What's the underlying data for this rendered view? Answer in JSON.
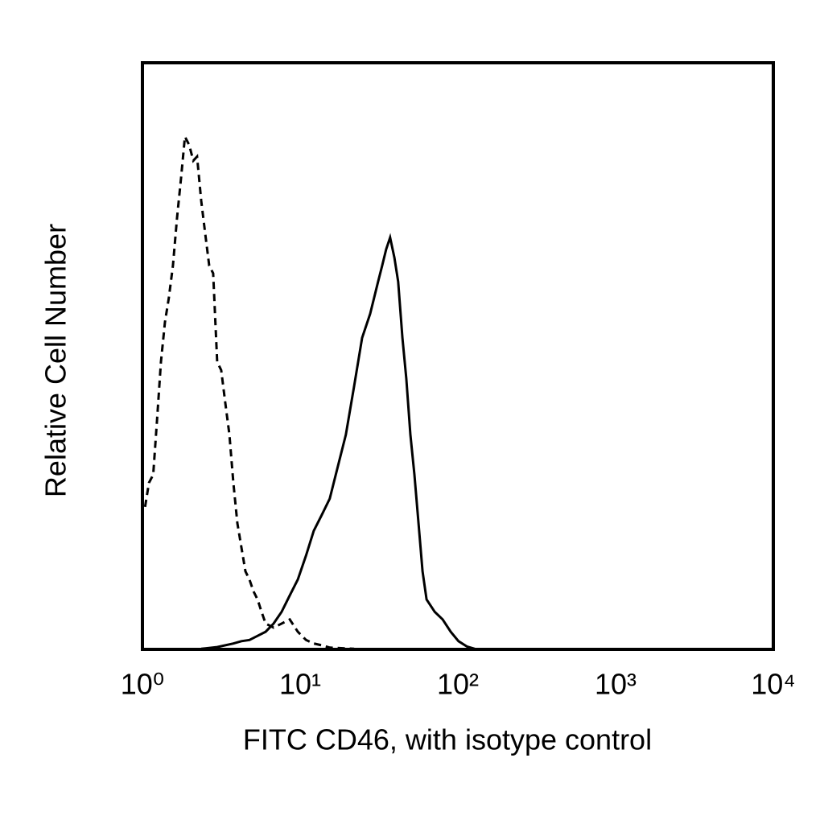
{
  "chart_data": {
    "type": "line",
    "xlabel": "FITC CD46, with isotype control",
    "ylabel": "Relative Cell Number",
    "xscale": "log",
    "xlim": [
      1,
      10000
    ],
    "xticks": [
      {
        "value": 1,
        "label": "10⁰"
      },
      {
        "value": 10,
        "label": "10¹"
      },
      {
        "value": 100,
        "label": "10²"
      },
      {
        "value": 1000,
        "label": "10³"
      },
      {
        "value": 10000,
        "label": "10⁴"
      }
    ],
    "ylim": [
      0,
      100
    ],
    "series": [
      {
        "color": "#000000",
        "dashed": true,
        "x": [
          1.04,
          1.1,
          1.17,
          1.24,
          1.31,
          1.39,
          1.47,
          1.56,
          1.66,
          1.76,
          1.86,
          1.98,
          2.1,
          2.22,
          2.36,
          2.5,
          2.65,
          2.81,
          2.98,
          3.16,
          3.35,
          3.56,
          3.77,
          4.0,
          4.24,
          4.5,
          4.77,
          5.06,
          5.37,
          5.69,
          6.04,
          6.79,
          7.63,
          8.59,
          9.66,
          10.9,
          12.2,
          13.7,
          15.4,
          22.0
        ],
        "values": [
          24.3,
          28.4,
          29.8,
          39.4,
          49.0,
          55.8,
          59.9,
          65.4,
          73.7,
          80.5,
          87.4,
          86.0,
          83.3,
          84.0,
          76.4,
          70.9,
          65.4,
          64.1,
          49.0,
          47.6,
          42.1,
          36.6,
          28.4,
          21.5,
          17.4,
          13.3,
          11.9,
          9.9,
          8.5,
          6.4,
          4.4,
          3.7,
          4.4,
          5.1,
          3.0,
          1.6,
          1.0,
          0.7,
          0.3,
          0.1
        ]
      },
      {
        "color": "#000000",
        "dashed": false,
        "x": [
          2.36,
          2.98,
          3.77,
          4.24,
          4.77,
          5.37,
          6.04,
          6.79,
          7.63,
          8.59,
          9.66,
          10.9,
          12.2,
          13.7,
          15.4,
          17.3,
          19.5,
          22.0,
          24.7,
          27.8,
          31.2,
          33.1,
          35.1,
          37.2,
          39.6,
          41.8,
          44.5,
          47.1,
          50.0,
          53.0,
          56.3,
          59.7,
          63.3,
          71.3,
          80.1,
          90.1,
          101,
          114,
          128
        ],
        "values": [
          0.1,
          0.4,
          1.0,
          1.4,
          1.6,
          2.3,
          3.0,
          4.4,
          6.4,
          9.2,
          11.9,
          16.0,
          20.2,
          22.9,
          25.7,
          31.1,
          36.6,
          44.9,
          53.1,
          57.2,
          62.7,
          65.4,
          68.2,
          70.2,
          66.8,
          62.7,
          53.1,
          46.2,
          36.6,
          29.8,
          21.5,
          13.3,
          8.5,
          6.4,
          5.1,
          3.0,
          1.4,
          0.5,
          0.1
        ]
      }
    ]
  }
}
